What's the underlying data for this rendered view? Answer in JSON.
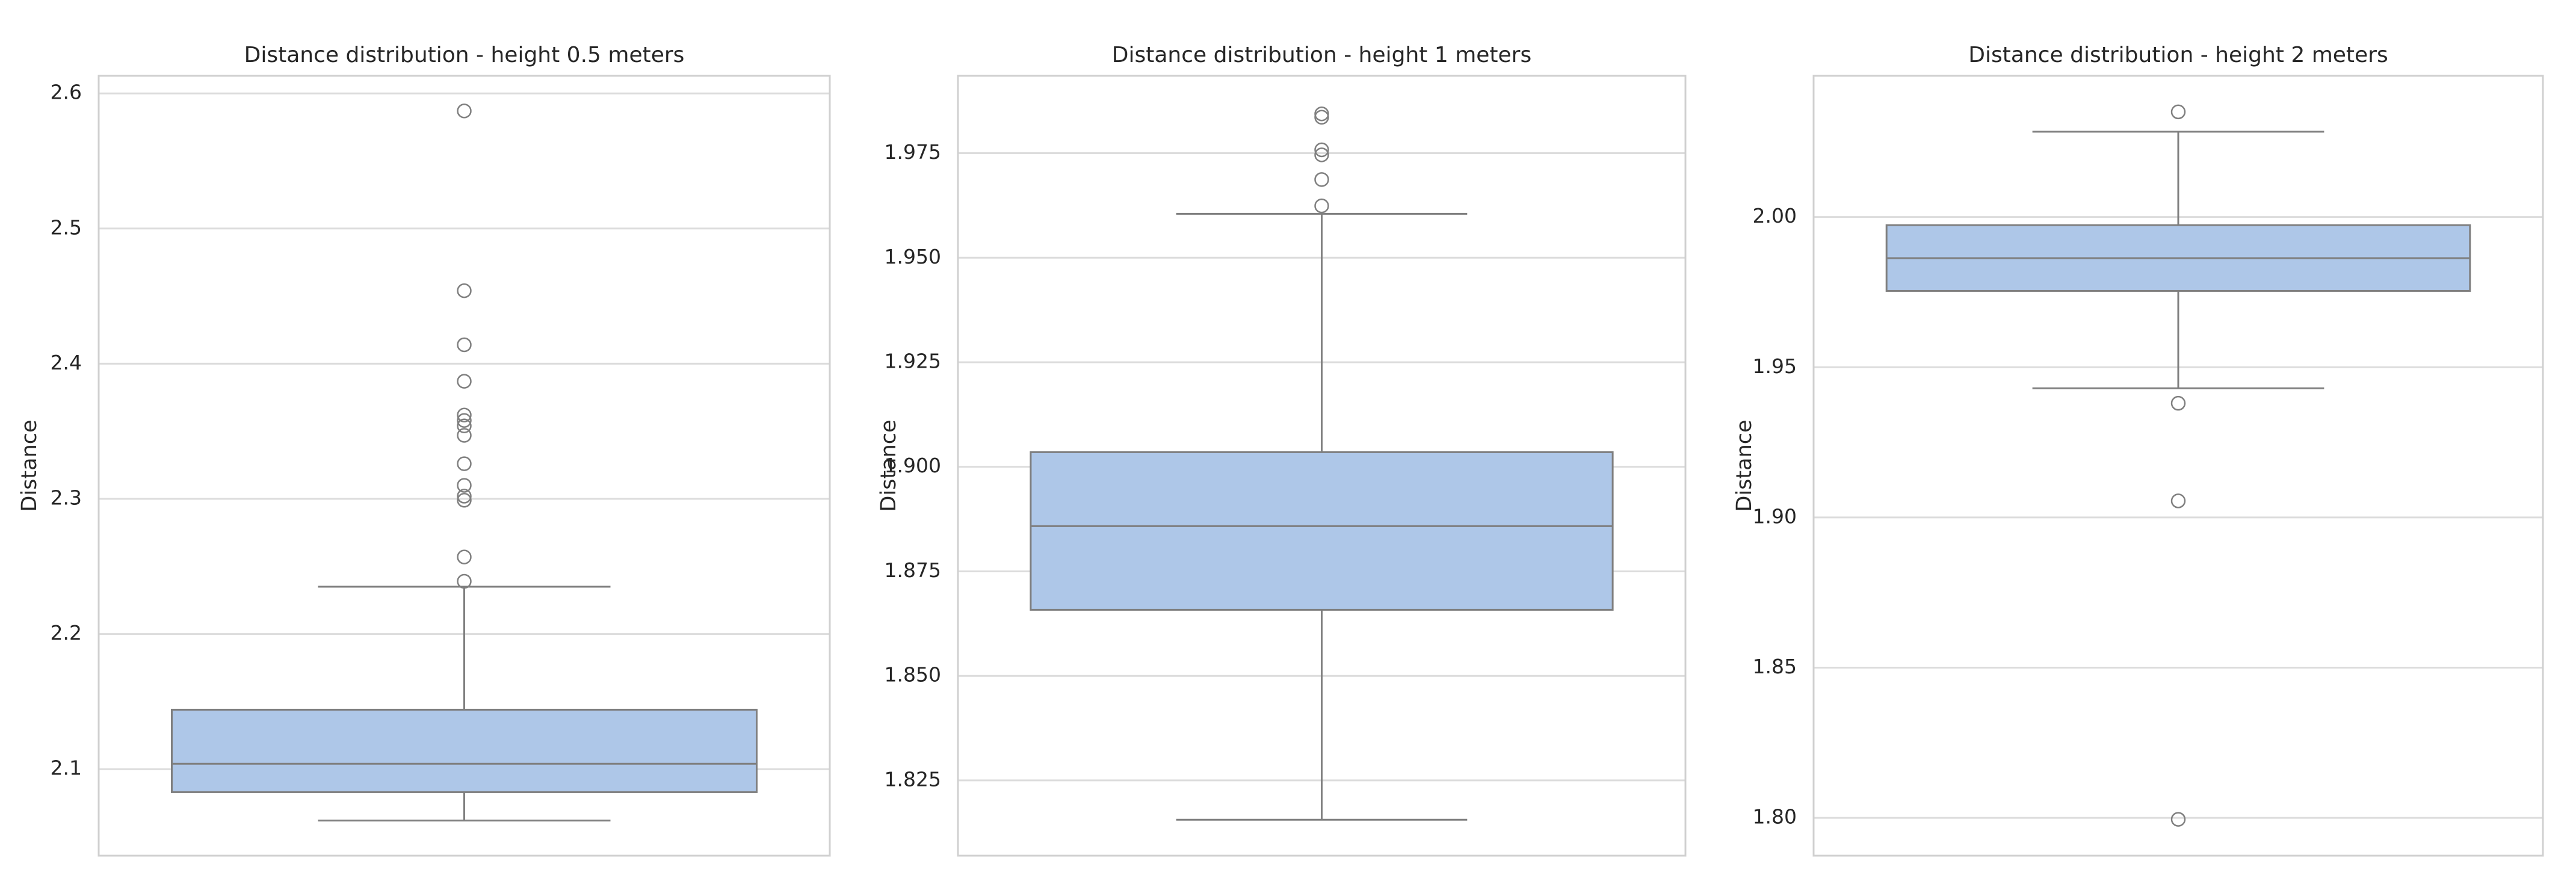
{
  "chart_data": [
    {
      "type": "box",
      "title": "Distance distribution - height 0.5 meters",
      "y_label": "Distance",
      "ylim": [
        2.036,
        2.613
      ],
      "yticks": [
        2.1,
        2.2,
        2.3,
        2.4,
        2.5,
        2.6
      ],
      "grid": true,
      "color": "#aec7e8",
      "whisker_low": 2.062,
      "q1": 2.083,
      "median": 2.104,
      "q3": 2.144,
      "whisker_high": 2.235,
      "outliers": [
        2.587,
        2.454,
        2.414,
        2.387,
        2.362,
        2.358,
        2.354,
        2.347,
        2.326,
        2.31,
        2.302,
        2.299,
        2.257,
        2.239
      ]
    },
    {
      "type": "box",
      "title": "Distance distribution - height 1 meters",
      "y_label": "Distance",
      "ylim": [
        1.807,
        1.9935
      ],
      "yticks": [
        1.825,
        {
          "value": 1.85,
          "label": "1.850"
        },
        1.875,
        {
          "value": 1.9,
          "label": "1.900"
        },
        1.925,
        {
          "value": 1.95,
          "label": "1.950"
        },
        1.975
      ],
      "grid": true,
      "color": "#aec7e8",
      "whisker_low": 1.8156,
      "q1": 1.8658,
      "median": 1.8858,
      "q3": 1.9035,
      "whisker_high": 1.9605,
      "outliers": [
        1.9844,
        1.9836,
        1.9758,
        1.9746,
        1.9687,
        1.9624
      ]
    },
    {
      "type": "box",
      "title": "Distance distribution - height 2 meters",
      "y_label": "Distance",
      "ylim": [
        1.7874,
        2.047
      ],
      "yticks": [
        {
          "value": 1.8,
          "label": "1.80"
        },
        1.85,
        {
          "value": 1.9,
          "label": "1.90"
        },
        1.95,
        {
          "value": 2.0,
          "label": "2.00"
        }
      ],
      "grid": true,
      "color": "#aec7e8",
      "whisker_low": 1.943,
      "q1": 1.9754,
      "median": 1.9863,
      "q3": 1.9973,
      "whisker_high": 2.0284,
      "outliers": [
        2.035,
        1.938,
        1.9055,
        1.7995
      ]
    }
  ]
}
